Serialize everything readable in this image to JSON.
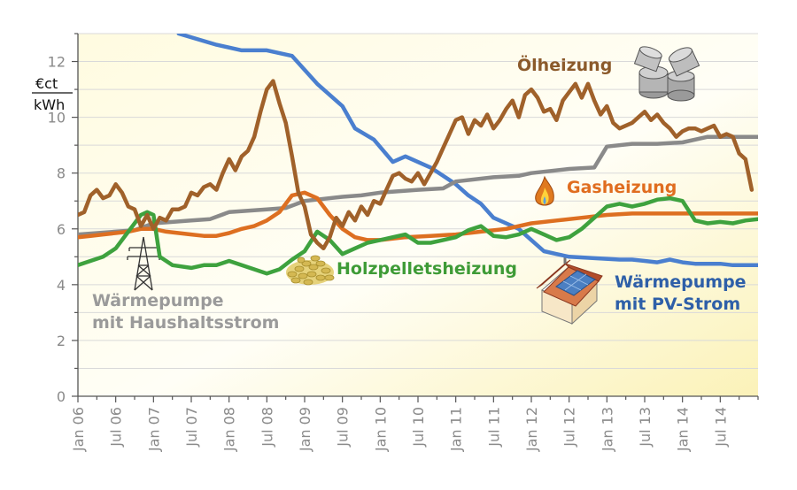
{
  "chart_data": {
    "type": "line",
    "title": "",
    "xlabel": "",
    "ylabel": "€ct/kWh",
    "unit_top": "€ct",
    "unit_bottom": "kWh",
    "ylim": [
      0,
      13
    ],
    "xlim": [
      0,
      108
    ],
    "yticks": [
      0,
      2,
      4,
      6,
      8,
      10,
      12
    ],
    "xticks": [
      {
        "x": 0,
        "label": "Jan 06"
      },
      {
        "x": 6,
        "label": "Jul 06"
      },
      {
        "x": 12,
        "label": "Jan 07"
      },
      {
        "x": 18,
        "label": "Jul 07"
      },
      {
        "x": 24,
        "label": "Jan 08"
      },
      {
        "x": 30,
        "label": "Jul 08"
      },
      {
        "x": 36,
        "label": "Jan 09"
      },
      {
        "x": 42,
        "label": "Jul 09"
      },
      {
        "x": 48,
        "label": "Jan 10"
      },
      {
        "x": 54,
        "label": "Jul 10"
      },
      {
        "x": 60,
        "label": "Jan 11"
      },
      {
        "x": 66,
        "label": "Jul 11"
      },
      {
        "x": 72,
        "label": "Jan 12"
      },
      {
        "x": 78,
        "label": "Jul 12"
      },
      {
        "x": 84,
        "label": "Jan 13"
      },
      {
        "x": 90,
        "label": "Jul 13"
      },
      {
        "x": 96,
        "label": "Jan 14"
      },
      {
        "x": 102,
        "label": "Jul 14"
      }
    ],
    "grid": true,
    "background": "yellow-white gradient",
    "series": [
      {
        "name": "Wärmepumpe mit PV-Strom",
        "label_lines": [
          "Wärmepumpe",
          "mit PV-Strom"
        ],
        "color": "#4a7fcf",
        "label_color": "#2e5fa8",
        "points": [
          [
            16,
            13.0
          ],
          [
            22,
            12.6
          ],
          [
            26,
            12.4
          ],
          [
            30,
            12.4
          ],
          [
            34,
            12.2
          ],
          [
            38,
            11.2
          ],
          [
            42,
            10.4
          ],
          [
            44,
            9.6
          ],
          [
            47,
            9.2
          ],
          [
            50,
            8.4
          ],
          [
            52,
            8.6
          ],
          [
            56,
            8.2
          ],
          [
            58,
            7.9
          ],
          [
            60,
            7.6
          ],
          [
            62,
            7.2
          ],
          [
            64,
            6.9
          ],
          [
            66,
            6.4
          ],
          [
            68,
            6.2
          ],
          [
            70,
            6.0
          ],
          [
            72,
            5.6
          ],
          [
            74,
            5.2
          ],
          [
            76,
            5.1
          ],
          [
            78,
            5.0
          ],
          [
            82,
            4.95
          ],
          [
            86,
            4.9
          ],
          [
            88,
            4.9
          ],
          [
            90,
            4.85
          ],
          [
            92,
            4.8
          ],
          [
            94,
            4.9
          ],
          [
            96,
            4.8
          ],
          [
            98,
            4.75
          ],
          [
            100,
            4.75
          ],
          [
            102,
            4.75
          ],
          [
            104,
            4.7
          ],
          [
            108,
            4.7
          ]
        ]
      },
      {
        "name": "Ölheizung",
        "label_lines": [
          "Ölheizung"
        ],
        "color": "#a0612a",
        "label_color": "#8b5a2b",
        "points": [
          [
            0,
            6.5
          ],
          [
            1,
            6.6
          ],
          [
            2,
            7.2
          ],
          [
            3,
            7.4
          ],
          [
            4,
            7.1
          ],
          [
            5,
            7.2
          ],
          [
            6,
            7.6
          ],
          [
            7,
            7.3
          ],
          [
            8,
            6.8
          ],
          [
            9,
            6.7
          ],
          [
            10,
            6.1
          ],
          [
            11,
            6.5
          ],
          [
            12,
            6.0
          ],
          [
            13,
            6.4
          ],
          [
            14,
            6.3
          ],
          [
            15,
            6.7
          ],
          [
            16,
            6.7
          ],
          [
            17,
            6.8
          ],
          [
            18,
            7.3
          ],
          [
            19,
            7.2
          ],
          [
            20,
            7.5
          ],
          [
            21,
            7.6
          ],
          [
            22,
            7.4
          ],
          [
            23,
            8.0
          ],
          [
            24,
            8.5
          ],
          [
            25,
            8.1
          ],
          [
            26,
            8.6
          ],
          [
            27,
            8.8
          ],
          [
            28,
            9.3
          ],
          [
            29,
            10.2
          ],
          [
            30,
            11.0
          ],
          [
            31,
            11.3
          ],
          [
            32,
            10.5
          ],
          [
            33,
            9.8
          ],
          [
            34,
            8.6
          ],
          [
            35,
            7.3
          ],
          [
            36,
            6.8
          ],
          [
            37,
            5.8
          ],
          [
            38,
            5.5
          ],
          [
            39,
            5.3
          ],
          [
            40,
            5.7
          ],
          [
            41,
            6.4
          ],
          [
            42,
            6.1
          ],
          [
            43,
            6.6
          ],
          [
            44,
            6.3
          ],
          [
            45,
            6.8
          ],
          [
            46,
            6.5
          ],
          [
            47,
            7.0
          ],
          [
            48,
            6.9
          ],
          [
            49,
            7.4
          ],
          [
            50,
            7.9
          ],
          [
            51,
            8.0
          ],
          [
            52,
            7.8
          ],
          [
            53,
            7.7
          ],
          [
            54,
            8.0
          ],
          [
            55,
            7.6
          ],
          [
            56,
            8.0
          ],
          [
            57,
            8.4
          ],
          [
            58,
            8.9
          ],
          [
            59,
            9.4
          ],
          [
            60,
            9.9
          ],
          [
            61,
            10.0
          ],
          [
            62,
            9.4
          ],
          [
            63,
            9.9
          ],
          [
            64,
            9.7
          ],
          [
            65,
            10.1
          ],
          [
            66,
            9.6
          ],
          [
            67,
            9.9
          ],
          [
            68,
            10.3
          ],
          [
            69,
            10.6
          ],
          [
            70,
            10.0
          ],
          [
            71,
            10.8
          ],
          [
            72,
            11.0
          ],
          [
            73,
            10.7
          ],
          [
            74,
            10.2
          ],
          [
            75,
            10.3
          ],
          [
            76,
            9.9
          ],
          [
            77,
            10.6
          ],
          [
            78,
            10.9
          ],
          [
            79,
            11.2
          ],
          [
            80,
            10.7
          ],
          [
            81,
            11.2
          ],
          [
            82,
            10.6
          ],
          [
            83,
            10.1
          ],
          [
            84,
            10.4
          ],
          [
            85,
            9.8
          ],
          [
            86,
            9.6
          ],
          [
            87,
            9.7
          ],
          [
            88,
            9.8
          ],
          [
            89,
            10.0
          ],
          [
            90,
            10.2
          ],
          [
            91,
            9.9
          ],
          [
            92,
            10.1
          ],
          [
            93,
            9.8
          ],
          [
            94,
            9.6
          ],
          [
            95,
            9.3
          ],
          [
            96,
            9.5
          ],
          [
            97,
            9.6
          ],
          [
            98,
            9.6
          ],
          [
            99,
            9.5
          ],
          [
            100,
            9.6
          ],
          [
            101,
            9.7
          ],
          [
            102,
            9.3
          ],
          [
            103,
            9.4
          ],
          [
            104,
            9.3
          ],
          [
            105,
            8.7
          ],
          [
            106,
            8.5
          ],
          [
            107,
            7.4
          ]
        ]
      },
      {
        "name": "Gasheizung",
        "label_lines": [
          "Gasheizung"
        ],
        "color": "#dd6f21",
        "label_color": "#e06d1f",
        "points": [
          [
            0,
            5.7
          ],
          [
            2,
            5.75
          ],
          [
            4,
            5.8
          ],
          [
            6,
            5.85
          ],
          [
            8,
            5.9
          ],
          [
            10,
            6.0
          ],
          [
            12,
            6.0
          ],
          [
            14,
            5.9
          ],
          [
            16,
            5.85
          ],
          [
            18,
            5.8
          ],
          [
            20,
            5.75
          ],
          [
            22,
            5.75
          ],
          [
            24,
            5.85
          ],
          [
            26,
            6.0
          ],
          [
            28,
            6.1
          ],
          [
            30,
            6.3
          ],
          [
            32,
            6.6
          ],
          [
            34,
            7.2
          ],
          [
            36,
            7.3
          ],
          [
            38,
            7.1
          ],
          [
            40,
            6.5
          ],
          [
            42,
            6.0
          ],
          [
            44,
            5.7
          ],
          [
            46,
            5.6
          ],
          [
            48,
            5.6
          ],
          [
            52,
            5.7
          ],
          [
            56,
            5.75
          ],
          [
            60,
            5.8
          ],
          [
            64,
            5.9
          ],
          [
            68,
            6.0
          ],
          [
            72,
            6.2
          ],
          [
            76,
            6.3
          ],
          [
            80,
            6.4
          ],
          [
            84,
            6.5
          ],
          [
            88,
            6.55
          ],
          [
            92,
            6.55
          ],
          [
            96,
            6.55
          ],
          [
            100,
            6.55
          ],
          [
            104,
            6.55
          ],
          [
            108,
            6.55
          ]
        ]
      },
      {
        "name": "Wärmepumpe mit Haushaltsstrom",
        "label_lines": [
          "Wärmepumpe",
          "mit Haushaltsstrom"
        ],
        "color": "#8a8a8a",
        "label_color": "#9a9a9a",
        "points": [
          [
            0,
            5.8
          ],
          [
            6,
            5.9
          ],
          [
            9,
            5.95
          ],
          [
            12,
            6.2
          ],
          [
            18,
            6.3
          ],
          [
            21,
            6.35
          ],
          [
            24,
            6.6
          ],
          [
            30,
            6.7
          ],
          [
            33,
            6.75
          ],
          [
            36,
            7.0
          ],
          [
            42,
            7.15
          ],
          [
            45,
            7.2
          ],
          [
            48,
            7.3
          ],
          [
            54,
            7.4
          ],
          [
            58,
            7.45
          ],
          [
            60,
            7.7
          ],
          [
            66,
            7.85
          ],
          [
            70,
            7.9
          ],
          [
            72,
            8.0
          ],
          [
            78,
            8.15
          ],
          [
            82,
            8.2
          ],
          [
            84,
            8.95
          ],
          [
            88,
            9.05
          ],
          [
            92,
            9.05
          ],
          [
            96,
            9.1
          ],
          [
            100,
            9.3
          ],
          [
            104,
            9.3
          ],
          [
            108,
            9.3
          ]
        ]
      },
      {
        "name": "Holzpelletsheizung",
        "label_lines": [
          "Holzpelletsheizung"
        ],
        "color": "#3ea23e",
        "label_color": "#3e9b36",
        "points": [
          [
            0,
            4.7
          ],
          [
            2,
            4.85
          ],
          [
            4,
            5.0
          ],
          [
            6,
            5.3
          ],
          [
            8,
            5.9
          ],
          [
            10,
            6.5
          ],
          [
            11,
            6.6
          ],
          [
            12,
            6.5
          ],
          [
            13,
            5.0
          ],
          [
            15,
            4.7
          ],
          [
            18,
            4.6
          ],
          [
            20,
            4.7
          ],
          [
            22,
            4.7
          ],
          [
            24,
            4.85
          ],
          [
            26,
            4.7
          ],
          [
            28,
            4.55
          ],
          [
            30,
            4.4
          ],
          [
            32,
            4.55
          ],
          [
            34,
            4.9
          ],
          [
            36,
            5.2
          ],
          [
            38,
            5.9
          ],
          [
            40,
            5.6
          ],
          [
            42,
            5.1
          ],
          [
            44,
            5.3
          ],
          [
            46,
            5.5
          ],
          [
            48,
            5.6
          ],
          [
            50,
            5.7
          ],
          [
            52,
            5.8
          ],
          [
            54,
            5.5
          ],
          [
            56,
            5.5
          ],
          [
            58,
            5.6
          ],
          [
            60,
            5.7
          ],
          [
            62,
            5.95
          ],
          [
            64,
            6.1
          ],
          [
            66,
            5.75
          ],
          [
            68,
            5.7
          ],
          [
            70,
            5.8
          ],
          [
            72,
            6.0
          ],
          [
            74,
            5.8
          ],
          [
            76,
            5.6
          ],
          [
            78,
            5.7
          ],
          [
            80,
            6.0
          ],
          [
            82,
            6.4
          ],
          [
            84,
            6.8
          ],
          [
            86,
            6.9
          ],
          [
            88,
            6.8
          ],
          [
            90,
            6.9
          ],
          [
            92,
            7.05
          ],
          [
            94,
            7.1
          ],
          [
            96,
            7.0
          ],
          [
            98,
            6.3
          ],
          [
            100,
            6.2
          ],
          [
            102,
            6.25
          ],
          [
            104,
            6.2
          ],
          [
            106,
            6.3
          ],
          [
            108,
            6.35
          ]
        ]
      }
    ]
  }
}
